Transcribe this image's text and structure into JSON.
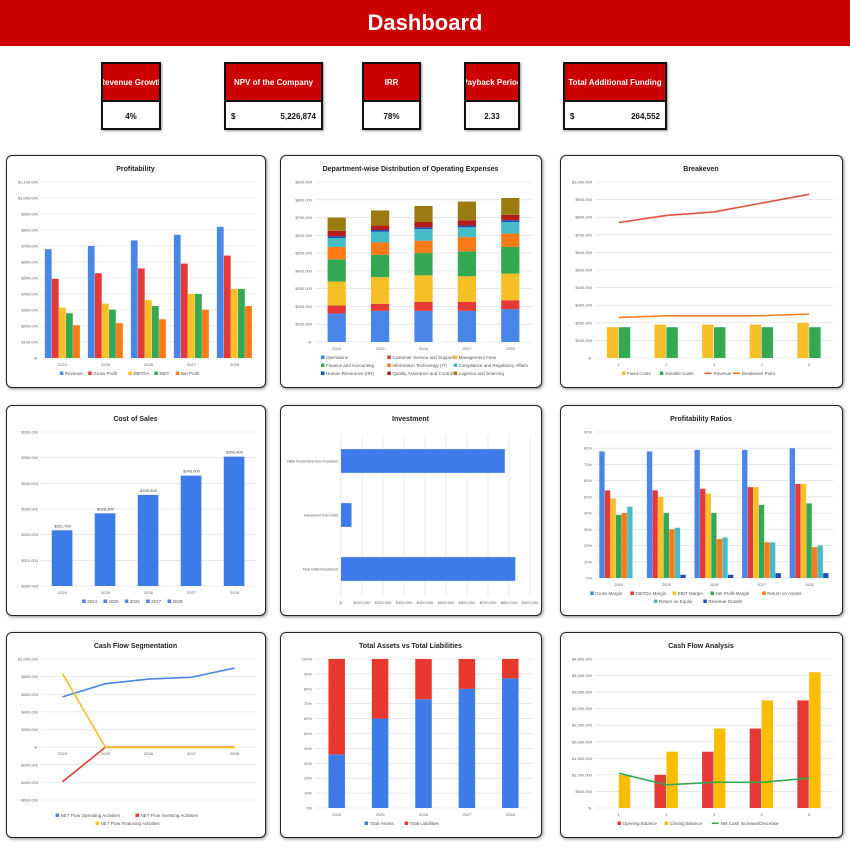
{
  "header": {
    "title": "Dashboard"
  },
  "kpis": [
    {
      "label": "Revenue Growth",
      "value": "4%"
    },
    {
      "label": "NPV of the Company",
      "currency": "$",
      "value": "5,226,874"
    },
    {
      "label": "IRR",
      "value": "78%"
    },
    {
      "label": "Payback Period",
      "value": "2.33"
    },
    {
      "label": "Total Additional Funding",
      "currency": "$",
      "value": "264,552"
    }
  ],
  "chart_data": [
    {
      "id": "profitability",
      "type": "bar",
      "title": "Profitability",
      "categories": [
        "2024",
        "2025",
        "2026",
        "2027",
        "2028"
      ],
      "ylim": [
        0,
        1100000
      ],
      "ystep": 100000,
      "grid": true,
      "legend": "bottom",
      "series": [
        {
          "name": "Revenue",
          "color": "#4a86e8",
          "values": [
            680000,
            700000,
            735000,
            770000,
            820000
          ]
        },
        {
          "name": "Gross Profit",
          "color": "#e53935",
          "values": [
            495000,
            530000,
            560000,
            590000,
            640000
          ]
        },
        {
          "name": "EBITDA",
          "color": "#f6bf26",
          "values": [
            315000,
            340000,
            362000,
            400000,
            432000
          ]
        },
        {
          "name": "EBIT",
          "color": "#34a853",
          "values": [
            280000,
            302000,
            325000,
            400000,
            432000
          ]
        },
        {
          "name": "Net Profit",
          "color": "#fa7b17",
          "values": [
            205000,
            218000,
            242000,
            302000,
            325000
          ]
        }
      ]
    },
    {
      "id": "opex",
      "type": "stacked",
      "title": "Department-wise Distribution of Operating Expenses",
      "categories": [
        "2024",
        "2025",
        "2026",
        "2027",
        "2028"
      ],
      "ylim": [
        0,
        900000
      ],
      "ystep": 100000,
      "grid": true,
      "legend": "bottom",
      "legend_columns": 3,
      "series": [
        {
          "name": "Operations",
          "color": "#4a86e8",
          "values": [
            160000,
            175000,
            175000,
            175000,
            185000
          ]
        },
        {
          "name": "Customer Service and Support",
          "color": "#e53935",
          "values": [
            45000,
            40000,
            50000,
            50000,
            50000
          ]
        },
        {
          "name": "Management Fees",
          "color": "#f6bf26",
          "values": [
            135000,
            150000,
            150000,
            145000,
            150000
          ]
        },
        {
          "name": "Finance and Accounting",
          "color": "#34a853",
          "values": [
            125000,
            125000,
            125000,
            140000,
            150000
          ]
        },
        {
          "name": "Information Technology (IT)",
          "color": "#fa7b17",
          "values": [
            70000,
            70000,
            70000,
            80000,
            75000
          ]
        },
        {
          "name": "Compliance and Regulatory Affairs",
          "color": "#46bdc6",
          "values": [
            50000,
            60000,
            65000,
            55000,
            65000
          ]
        },
        {
          "name": "Human Resources (HR)",
          "color": "#1a4fb5",
          "values": [
            10000,
            10000,
            10000,
            10000,
            10000
          ]
        },
        {
          "name": "Quality Assurance and Control",
          "color": "#b71c1c",
          "values": [
            30000,
            25000,
            30000,
            30000,
            30000
          ]
        },
        {
          "name": "Logistics and Sourcing",
          "color": "#9c7a12",
          "values": [
            75000,
            85000,
            90000,
            105000,
            95000
          ]
        }
      ]
    },
    {
      "id": "breakeven",
      "type": "bar",
      "title": "Breakeven",
      "categories": [
        "1",
        "2",
        "3",
        "4",
        "5"
      ],
      "ylim": [
        0,
        1000000
      ],
      "ystep": 100000,
      "grid": true,
      "legend": "bottom",
      "group_width": 0.5,
      "series": [
        {
          "name": "Fixed Costs",
          "color": "#f6bf26",
          "values": [
            175000,
            190000,
            190000,
            190000,
            200000
          ]
        },
        {
          "name": "Variable Costs",
          "color": "#34a853",
          "values": [
            175000,
            175000,
            175000,
            175000,
            175000
          ]
        },
        {
          "name": "Revenue",
          "color": "#e0533f",
          "kind": "line",
          "values": [
            770000,
            810000,
            830000,
            880000,
            930000
          ]
        },
        {
          "name": "Breakeven Point",
          "color": "#fa7b17",
          "kind": "line",
          "values": [
            230000,
            240000,
            240000,
            240000,
            250000
          ]
        }
      ]
    },
    {
      "id": "cost-of-sales",
      "type": "bar",
      "title": "Cost of Sales",
      "categories": [
        "2024",
        "2025",
        "2026",
        "2027",
        "2028"
      ],
      "ylim": [
        300000,
        360000
      ],
      "ystep": 10000,
      "grid": true,
      "legend": "bottom",
      "group_width": 0.5,
      "legend_items": [
        {
          "name": "2024",
          "color": "#4a86e8"
        },
        {
          "name": "2025",
          "color": "#4a86e8"
        },
        {
          "name": "2026",
          "color": "#4a86e8"
        },
        {
          "name": "2027",
          "color": "#4a86e8"
        },
        {
          "name": "2028",
          "color": "#4a86e8"
        }
      ],
      "data_labels": [
        "$321,700",
        "$328,300",
        "$335,500",
        "$343,000",
        "$350,400"
      ],
      "series": [
        {
          "name": "Cost of Sales",
          "color": "#3d7be6",
          "values": [
            321700,
            328300,
            335500,
            343000,
            350400
          ]
        }
      ]
    },
    {
      "id": "investment",
      "type": "hbar",
      "title": "Investment",
      "categories": [
        "Initial Investment from Founders",
        "Investment from Debt",
        "Total Initial Investment"
      ],
      "xlim": [
        0,
        900000
      ],
      "xstep": 100000,
      "grid": true,
      "series": [
        {
          "name": "Investment",
          "color": "#3d7be6",
          "values": [
            780000,
            50000,
            830000
          ]
        }
      ]
    },
    {
      "id": "profitability-ratios",
      "type": "bar",
      "title": "Profitability Ratios",
      "percent": true,
      "categories": [
        "2024",
        "2025",
        "2026",
        "2027",
        "2028"
      ],
      "ylim": [
        0,
        90
      ],
      "ystep": 10,
      "grid": true,
      "legend": "bottom",
      "series": [
        {
          "name": "Gross Margin",
          "color": "#4a86e8",
          "values": [
            78,
            78,
            79,
            79,
            80
          ]
        },
        {
          "name": "EBITDA Margin",
          "color": "#e53935",
          "values": [
            54,
            54,
            55,
            56,
            58
          ]
        },
        {
          "name": "EBIT Margin",
          "color": "#f6bf26",
          "values": [
            49,
            50,
            52,
            56,
            58
          ]
        },
        {
          "name": "Net Profit Margin",
          "color": "#34a853",
          "values": [
            39,
            40,
            40,
            45,
            46
          ]
        },
        {
          "name": "Return on Assets",
          "color": "#fa7b17",
          "values": [
            40,
            30,
            24,
            22,
            19
          ]
        },
        {
          "name": "Return on Equity",
          "color": "#46bdc6",
          "values": [
            44,
            31,
            25,
            22,
            20
          ]
        },
        {
          "name": "Revenue Growth",
          "color": "#1a4fb5",
          "values": [
            0,
            2,
            2,
            3,
            3
          ]
        }
      ]
    },
    {
      "id": "cash-flow-segmentation",
      "type": "line",
      "title": "Cash Flow Segmentation",
      "categories": [
        "2024",
        "2025",
        "2026",
        "2027",
        "2028"
      ],
      "ylim": [
        -600000,
        1000000
      ],
      "ystep": 200000,
      "grid": true,
      "legend": "bottom",
      "series": [
        {
          "name": "NET Flow Operating Activities",
          "color": "#4a86e8",
          "values": [
            570000,
            720000,
            772000,
            793000,
            897000
          ]
        },
        {
          "name": "NET Flow Investing Activities",
          "color": "#e53935",
          "values": [
            -393000,
            0,
            0,
            0,
            0
          ]
        },
        {
          "name": "NET Flow Financing Activities",
          "color": "#f6bf26",
          "values": [
            835000,
            -5000,
            -5000,
            -5000,
            -5000
          ]
        }
      ]
    },
    {
      "id": "assets-vs-liabilities",
      "type": "stacked",
      "title": "Total Assets vs Total Liabilities",
      "percent": true,
      "categories": [
        "2024",
        "2025",
        "2026",
        "2027",
        "2028"
      ],
      "ylim": [
        0,
        100
      ],
      "ystep": 10,
      "grid": true,
      "legend": "bottom",
      "bar_width": 0.38,
      "series": [
        {
          "name": "Total Assets",
          "color": "#3d7be6",
          "values": [
            36,
            60,
            73,
            80,
            87
          ]
        },
        {
          "name": "Total Liabilities",
          "color": "#e8382e",
          "values": [
            64,
            40,
            27,
            20,
            13
          ]
        }
      ]
    },
    {
      "id": "cash-flow-analysis",
      "type": "bar",
      "title": "Cash Flow Analysis",
      "categories": [
        "1",
        "2",
        "3",
        "4",
        "5"
      ],
      "ylim": [
        0,
        4500000
      ],
      "ystep": 500000,
      "grid": true,
      "legend": "bottom",
      "group_width": 0.5,
      "series": [
        {
          "name": "Opening Balance",
          "color": "#e53935",
          "values": [
            0,
            1000000,
            1700000,
            2400000,
            3250000
          ]
        },
        {
          "name": "Closing Balance",
          "color": "#fbbc04",
          "values": [
            1000000,
            1700000,
            2400000,
            3250000,
            4100000
          ]
        },
        {
          "name": "Net Cash Increase/Decrease",
          "color": "#34a853",
          "kind": "line",
          "values": [
            1050000,
            700000,
            775000,
            775000,
            900000
          ]
        }
      ]
    }
  ]
}
